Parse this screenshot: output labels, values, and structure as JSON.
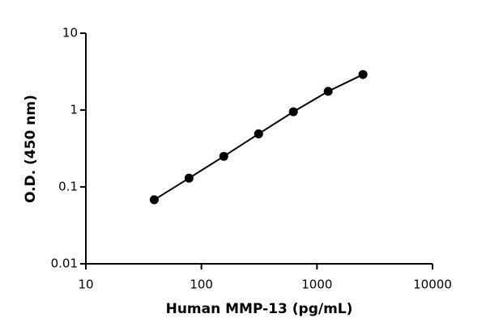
{
  "chart_data": {
    "type": "scatter-line",
    "x_label": "Human MMP-13 (pg/mL)",
    "y_label": "O.D. (450 nm)",
    "x": [
      39.06,
      78.13,
      156.25,
      312.5,
      625,
      1250,
      2500
    ],
    "series": [
      {
        "color": "#000000",
        "values": [
          0.068,
          0.13,
          0.25,
          0.49,
          0.95,
          1.75,
          2.9
        ]
      }
    ],
    "xlim": [
      10,
      10000
    ],
    "ylim": [
      0.01,
      10
    ],
    "xticks": [
      10,
      100,
      1000,
      10000
    ],
    "yticks": [
      0.01,
      0.1,
      1,
      10
    ],
    "xscale": "log",
    "yscale": "log"
  }
}
